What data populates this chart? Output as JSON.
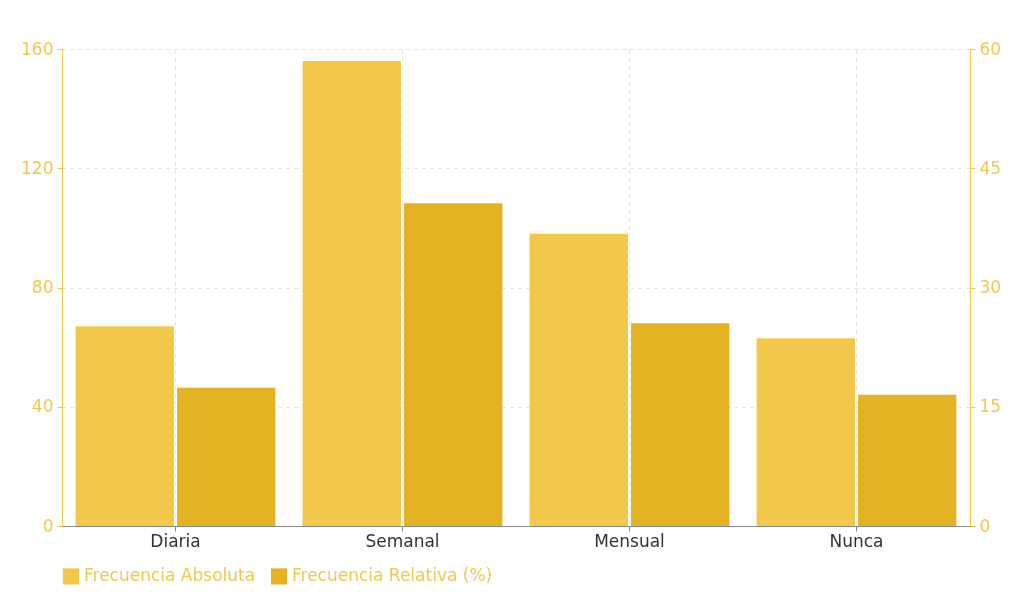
{
  "chart_data": {
    "type": "bar",
    "categories": [
      "Diaria",
      "Semanal",
      "Mensual",
      "Nunca"
    ],
    "series": [
      {
        "name": "Frecuencia Absoluta",
        "color": "#f2c84b",
        "values": [
          67,
          156,
          98,
          63
        ]
      },
      {
        "name": "Frecuencia Relativa (%)",
        "color": "#e3b324",
        "values": [
          17.4,
          40.6,
          25.5,
          16.5
        ],
        "axis": "y2"
      }
    ],
    "ylim": [
      0,
      160
    ],
    "yticks": [
      0,
      40,
      80,
      120,
      160
    ],
    "y2lim": [
      0,
      60
    ],
    "y2ticks": [
      0,
      15,
      30,
      45,
      60
    ],
    "grid": true,
    "legend": "bottom"
  }
}
